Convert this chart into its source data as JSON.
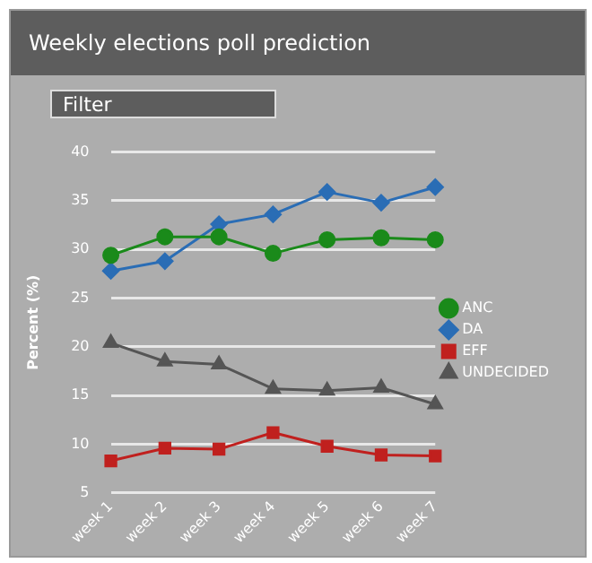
{
  "chart_data": {
    "type": "line",
    "title": "Weekly elections poll prediction",
    "ylabel": "Percent (%)",
    "annotations": [
      "Filter"
    ],
    "categories": [
      "week 1",
      "week 2",
      "week 3",
      "week 4",
      "week 5",
      "week 6",
      "week 7"
    ],
    "series": [
      {
        "name": "ANC",
        "color": "#1a8a1a",
        "marker": "circle",
        "values": [
          29.4,
          31.3,
          31.3,
          29.6,
          31.0,
          31.2,
          31.0
        ]
      },
      {
        "name": "DA",
        "color": "#2a6db5",
        "marker": "diamond",
        "values": [
          27.8,
          28.8,
          32.6,
          33.6,
          35.9,
          34.8,
          36.4
        ]
      },
      {
        "name": "EFF",
        "color": "#c0201e",
        "marker": "square",
        "values": [
          8.3,
          9.6,
          9.5,
          11.2,
          9.8,
          8.9,
          8.8
        ]
      },
      {
        "name": "UNDECIDED",
        "color": "#555555",
        "marker": "triangle",
        "values": [
          20.4,
          18.5,
          18.2,
          15.7,
          15.5,
          15.8,
          14.1
        ]
      }
    ],
    "ylim": [
      5,
      40
    ],
    "yticks": [
      5,
      10,
      15,
      20,
      25,
      30,
      35,
      40
    ],
    "grid": "y",
    "legend": "right",
    "line_style": "solid"
  }
}
